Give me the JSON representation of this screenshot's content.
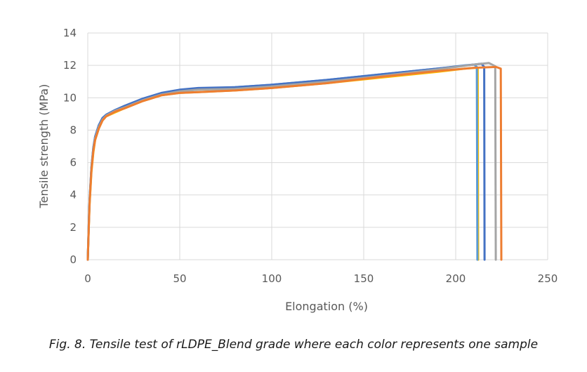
{
  "caption": "Fig. 8. Tensile test of rLDPE_Blend grade where each color represents one sample",
  "chart_data": {
    "type": "line",
    "title": "",
    "xlabel": "Elongation (%)",
    "ylabel": "Tensile strength (MPa)",
    "xlim": [
      0,
      250
    ],
    "ylim": [
      0,
      14
    ],
    "xticks": [
      0,
      50,
      100,
      150,
      200,
      250
    ],
    "yticks": [
      0,
      2,
      4,
      6,
      8,
      10,
      12,
      14
    ],
    "xtick_labels": [
      "0",
      "50",
      "100",
      "150",
      "200",
      "250"
    ],
    "ytick_labels": [
      "0",
      "2",
      "4",
      "6",
      "8",
      "10",
      "12",
      "14"
    ],
    "grid": true,
    "legend": "none",
    "series": [
      {
        "color": "#FFC000",
        "points": [
          [
            0,
            0
          ],
          [
            0.5,
            1.8
          ],
          [
            1,
            3.4
          ],
          [
            2,
            5.4
          ],
          [
            3,
            6.6
          ],
          [
            4,
            7.4
          ],
          [
            6,
            8.1
          ],
          [
            8,
            8.6
          ],
          [
            10,
            8.85
          ],
          [
            15,
            9.1
          ],
          [
            20,
            9.35
          ],
          [
            30,
            9.8
          ],
          [
            40,
            10.15
          ],
          [
            50,
            10.3
          ],
          [
            60,
            10.35
          ],
          [
            80,
            10.45
          ],
          [
            100,
            10.6
          ],
          [
            130,
            10.9
          ],
          [
            160,
            11.25
          ],
          [
            190,
            11.6
          ],
          [
            205,
            11.8
          ],
          [
            211,
            11.85
          ],
          [
            212,
            11.8
          ],
          [
            212.2,
            0
          ]
        ]
      },
      {
        "color": "#5B9BD5",
        "points": [
          [
            0,
            0
          ],
          [
            0.5,
            2.0
          ],
          [
            1,
            3.7
          ],
          [
            2,
            5.7
          ],
          [
            3,
            6.9
          ],
          [
            4,
            7.6
          ],
          [
            6,
            8.3
          ],
          [
            8,
            8.75
          ],
          [
            10,
            8.95
          ],
          [
            15,
            9.25
          ],
          [
            20,
            9.45
          ],
          [
            30,
            9.9
          ],
          [
            40,
            10.25
          ],
          [
            50,
            10.45
          ],
          [
            60,
            10.55
          ],
          [
            80,
            10.65
          ],
          [
            100,
            10.8
          ],
          [
            130,
            11.1
          ],
          [
            160,
            11.45
          ],
          [
            190,
            11.8
          ],
          [
            205,
            12.0
          ],
          [
            210,
            12.05
          ],
          [
            211.5,
            11.9
          ],
          [
            211.8,
            0
          ]
        ]
      },
      {
        "color": "#4472C4",
        "points": [
          [
            0,
            0
          ],
          [
            0.5,
            2.0
          ],
          [
            1,
            3.7
          ],
          [
            2,
            5.7
          ],
          [
            3,
            6.9
          ],
          [
            4,
            7.6
          ],
          [
            6,
            8.3
          ],
          [
            8,
            8.75
          ],
          [
            10,
            8.95
          ],
          [
            15,
            9.25
          ],
          [
            20,
            9.5
          ],
          [
            30,
            9.95
          ],
          [
            40,
            10.3
          ],
          [
            50,
            10.5
          ],
          [
            60,
            10.6
          ],
          [
            80,
            10.65
          ],
          [
            100,
            10.8
          ],
          [
            130,
            11.1
          ],
          [
            160,
            11.45
          ],
          [
            190,
            11.8
          ],
          [
            210,
            12.05
          ],
          [
            214,
            12.1
          ],
          [
            215.5,
            11.9
          ],
          [
            215.7,
            0
          ]
        ]
      },
      {
        "color": "#A5A5A5",
        "points": [
          [
            0,
            0
          ],
          [
            0.5,
            1.9
          ],
          [
            1,
            3.6
          ],
          [
            2,
            5.6
          ],
          [
            3,
            6.8
          ],
          [
            4,
            7.5
          ],
          [
            6,
            8.2
          ],
          [
            8,
            8.65
          ],
          [
            10,
            8.9
          ],
          [
            15,
            9.2
          ],
          [
            20,
            9.4
          ],
          [
            30,
            9.85
          ],
          [
            40,
            10.2
          ],
          [
            50,
            10.4
          ],
          [
            60,
            10.5
          ],
          [
            80,
            10.55
          ],
          [
            100,
            10.7
          ],
          [
            130,
            11.0
          ],
          [
            160,
            11.35
          ],
          [
            190,
            11.75
          ],
          [
            210,
            12.05
          ],
          [
            218,
            12.15
          ],
          [
            221.5,
            11.95
          ],
          [
            221.8,
            0
          ]
        ]
      },
      {
        "color": "#ED7D31",
        "points": [
          [
            0,
            0
          ],
          [
            0.5,
            1.8
          ],
          [
            1,
            3.5
          ],
          [
            2,
            5.5
          ],
          [
            3,
            6.7
          ],
          [
            4,
            7.4
          ],
          [
            6,
            8.1
          ],
          [
            8,
            8.6
          ],
          [
            10,
            8.85
          ],
          [
            15,
            9.15
          ],
          [
            20,
            9.35
          ],
          [
            30,
            9.8
          ],
          [
            40,
            10.15
          ],
          [
            50,
            10.3
          ],
          [
            60,
            10.35
          ],
          [
            80,
            10.45
          ],
          [
            100,
            10.6
          ],
          [
            130,
            10.9
          ],
          [
            160,
            11.3
          ],
          [
            190,
            11.65
          ],
          [
            210,
            11.85
          ],
          [
            222,
            11.9
          ],
          [
            224.5,
            11.8
          ],
          [
            224.8,
            0
          ]
        ]
      }
    ]
  }
}
